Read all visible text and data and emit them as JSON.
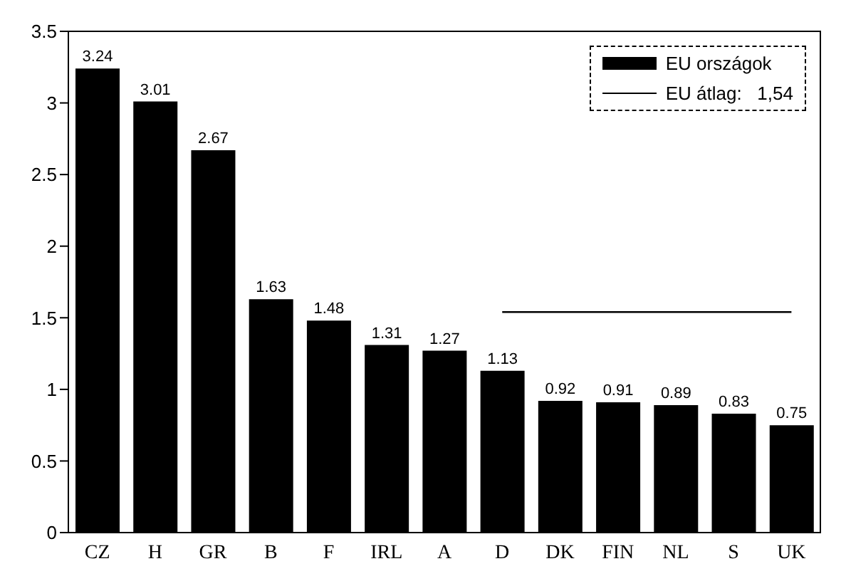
{
  "chart_data": {
    "type": "bar",
    "categories": [
      "CZ",
      "H",
      "GR",
      "B",
      "F",
      "IRL",
      "A",
      "D",
      "DK",
      "FIN",
      "NL",
      "S",
      "UK"
    ],
    "series": [
      {
        "name": "EU országok",
        "color": "#000000",
        "values": [
          3.24,
          3.01,
          2.67,
          1.63,
          1.48,
          1.31,
          1.27,
          1.13,
          0.92,
          0.91,
          0.89,
          0.83,
          0.75
        ]
      }
    ],
    "ylim": [
      0,
      3.5
    ],
    "yticks": [
      0,
      0.5,
      1,
      1.5,
      2,
      2.5,
      3,
      3.5
    ],
    "data_labels": true,
    "grid": false,
    "legend": "top right",
    "ref_lines": [
      {
        "axis": "y",
        "value": 1.54,
        "label": "EU átlag:   1,54",
        "color": "#000000"
      }
    ]
  }
}
